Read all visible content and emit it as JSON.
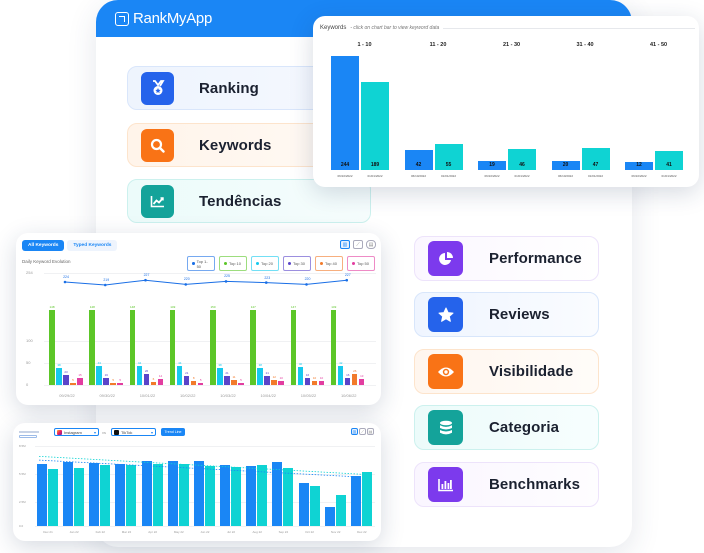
{
  "app": {
    "brand": "RankMyApp",
    "header_color": "#1a86f5"
  },
  "cards_left": [
    {
      "label": "Ranking",
      "icon": "medal-icon",
      "color": "#2563eb",
      "bg": "#eef4fd",
      "border": "#d9e6fb"
    },
    {
      "label": "Keywords",
      "icon": "search-icon",
      "color": "#f97316",
      "bg": "#fff6ee",
      "border": "#fde4cc"
    },
    {
      "label": "Tendências",
      "icon": "trend-chart-icon",
      "color": "#14a39a",
      "bg": "#eefbfa",
      "border": "#ccf1ee"
    }
  ],
  "cards_right": [
    {
      "label": "Performance",
      "icon": "pie-chart-icon",
      "color": "#7c3aed",
      "bg": "#fbf7ff",
      "border": "#ede3fb"
    },
    {
      "label": "Reviews",
      "icon": "star-icon",
      "color": "#2563eb",
      "bg": "#f0f6ff",
      "border": "#d8e6fb"
    },
    {
      "label": "Visibilidade",
      "icon": "eye-icon",
      "color": "#f97316",
      "bg": "#fff8f1",
      "border": "#fde4cc"
    },
    {
      "label": "Categoria",
      "icon": "database-icon",
      "color": "#14a39a",
      "bg": "#effcfb",
      "border": "#ccf1ee"
    },
    {
      "label": "Benchmarks",
      "icon": "bar-chart-icon",
      "color": "#7c3aed",
      "bg": "#fbf8ff",
      "border": "#ede3fb"
    }
  ],
  "keywords_panel": {
    "title": "Keywords",
    "subtitle": "- click on chart bar to view keyword data"
  },
  "daily_panel": {
    "tabs": [
      "All Keywords",
      "Typed Keywords"
    ],
    "subtitle": "Daily Keyword Evolution",
    "legend": [
      {
        "label": "Top 1-50",
        "color": "#1a6fe6"
      },
      {
        "label": "Top 10",
        "color": "#5cc628"
      },
      {
        "label": "Top 20",
        "color": "#16c9ee"
      },
      {
        "label": "Top 30",
        "color": "#5a45c9"
      },
      {
        "label": "Top 40",
        "color": "#f27a2a"
      },
      {
        "label": "Top 50",
        "color": "#e23da0"
      }
    ],
    "y_ticks": [
      "254",
      "100",
      "50",
      "0"
    ]
  },
  "comparison_panel": {
    "app_a": "Instagram",
    "vs_label": "vs",
    "app_b": "TikTok",
    "trend_button": "Trend Line",
    "y_ticks": [
      "8.5M",
      "5.5M",
      "2.5M",
      "0.0"
    ]
  },
  "chart_data": [
    {
      "type": "bar",
      "title": "Keywords",
      "subtitle": "click on chart bar to view keyword data",
      "categories": [
        "1 - 10",
        "11 - 20",
        "21 - 30",
        "31 - 40",
        "41 - 50"
      ],
      "series": [
        {
          "name": "06/10/2022",
          "color": "#1a86f5",
          "values": [
            244,
            42,
            19,
            20,
            12
          ]
        },
        {
          "name": "01/01/2022",
          "color": "#0fd3d3",
          "values": [
            189,
            55,
            46,
            47,
            41
          ]
        }
      ],
      "grid": false
    },
    {
      "type": "bar",
      "title": "Daily Keyword Evolution",
      "categories": [
        "09/29/22",
        "09/30/22",
        "10/01/22",
        "10/02/22",
        "10/03/22",
        "10/04/22",
        "10/05/22",
        "10/06/22"
      ],
      "ylim": [
        0,
        254
      ],
      "y_ticks": [
        0,
        50,
        100,
        254
      ],
      "series": [
        {
          "name": "Top 1-50",
          "type": "line",
          "values": [
            224,
            219,
            227,
            220,
            225,
            223,
            220,
            227
          ]
        },
        {
          "name": "Top 10",
          "values": [
            148,
            148,
            148,
            149,
            150,
            147,
            147,
            149
          ]
        },
        {
          "name": "Top 20",
          "values": [
            38,
            43,
            44,
            44,
            38,
            38,
            40,
            42
          ]
        },
        {
          "name": "Top 30",
          "values": [
            23,
            16,
            26,
            21,
            21,
            21,
            16,
            16
          ]
        },
        {
          "name": "Top 40",
          "values": [
            5,
            5,
            6,
            8,
            11,
            12,
            10,
            26
          ]
        },
        {
          "name": "Top 50",
          "values": [
            15,
            5,
            14,
            5,
            5,
            10,
            10,
            13
          ]
        }
      ],
      "legend_position": "top-right",
      "grid": true
    },
    {
      "type": "bar",
      "title": "Instagram vs TikTok",
      "categories": [
        "Dec 21",
        "Jan 22",
        "Feb 22",
        "Mar 22",
        "Apr 22",
        "May 22",
        "Jun 22",
        "Jul 22",
        "Aug 22",
        "Sep 22",
        "Oct 22",
        "Nov 22",
        "Dec 22"
      ],
      "y_ticks": [
        "0.0",
        "2.5M",
        "5.5M",
        "8.5M"
      ],
      "series": [
        {
          "name": "Instagram",
          "color": "#1a86f5",
          "values": [
            6.6,
            6.8,
            6.7,
            6.6,
            6.9,
            6.9,
            6.9,
            6.5,
            6.4,
            6.8,
            4.6,
            2.0,
            5.3
          ]
        },
        {
          "name": "TikTok",
          "color": "#0fd3d3",
          "values": [
            6.1,
            6.2,
            6.5,
            6.5,
            6.6,
            6.6,
            6.4,
            6.3,
            6.5,
            6.2,
            4.3,
            3.3,
            5.7
          ]
        }
      ],
      "trend_lines": true,
      "grid": true
    }
  ]
}
